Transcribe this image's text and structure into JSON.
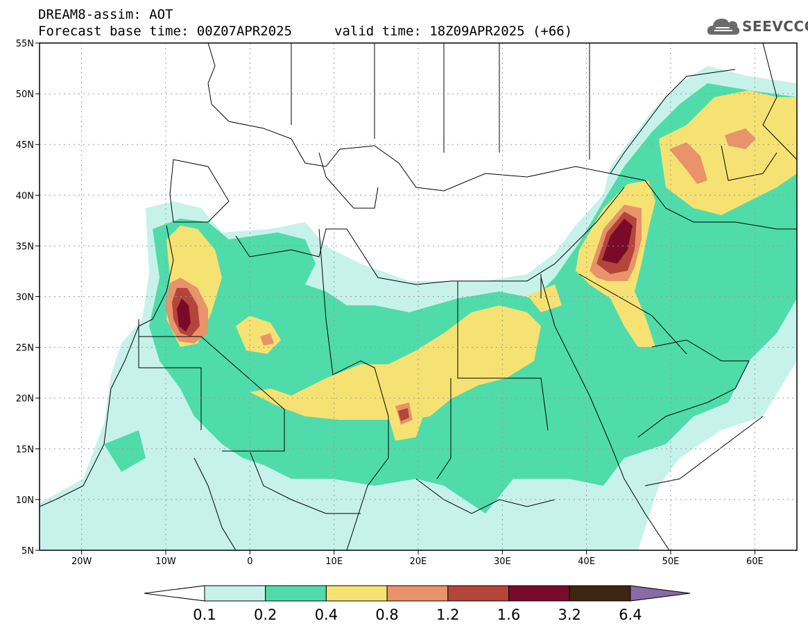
{
  "header": {
    "title": "DREAM8-assim: AOT",
    "base_time_line": "Forecast base time: 00Z07APR2025",
    "valid_time_line": "valid time: 18Z09APR2025 (+66)"
  },
  "logo": {
    "text": "SEEVCCC",
    "icon": "cloud-icon"
  },
  "map": {
    "lon_range": [
      -25,
      65
    ],
    "lat_range": [
      5,
      55
    ],
    "lat_ticks": [
      {
        "value": 55,
        "label": "55N"
      },
      {
        "value": 50,
        "label": "50N"
      },
      {
        "value": 45,
        "label": "45N"
      },
      {
        "value": 40,
        "label": "40N"
      },
      {
        "value": 35,
        "label": "35N"
      },
      {
        "value": 30,
        "label": "30N"
      },
      {
        "value": 25,
        "label": "25N"
      },
      {
        "value": 20,
        "label": "20N"
      },
      {
        "value": 15,
        "label": "15N"
      },
      {
        "value": 10,
        "label": "10N"
      },
      {
        "value": 5,
        "label": "5N"
      }
    ],
    "lon_ticks": [
      {
        "value": -20,
        "label": "20W"
      },
      {
        "value": -10,
        "label": "10W"
      },
      {
        "value": 0,
        "label": "0"
      },
      {
        "value": 10,
        "label": "10E"
      },
      {
        "value": 20,
        "label": "20E"
      },
      {
        "value": 30,
        "label": "30E"
      },
      {
        "value": 40,
        "label": "40E"
      },
      {
        "value": 50,
        "label": "50E"
      },
      {
        "value": 60,
        "label": "60E"
      }
    ],
    "grid": true
  },
  "legend": {
    "labels": [
      "0.1",
      "0.2",
      "0.4",
      "0.8",
      "1.2",
      "1.6",
      "3.2",
      "6.4"
    ],
    "colors": [
      "#ffffff",
      "#c6f2ea",
      "#4fdcaa",
      "#f6e273",
      "#e8936a",
      "#b4453b",
      "#7a0a2a",
      "#3d2512",
      "#8a6aa6"
    ]
  }
}
